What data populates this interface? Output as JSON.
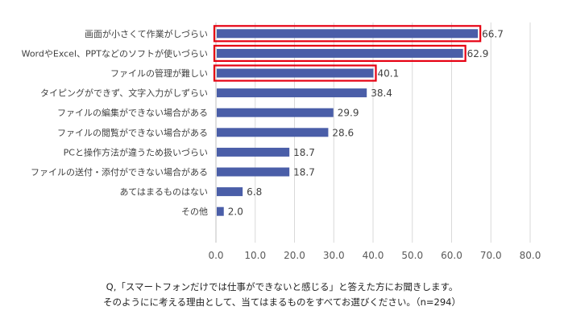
{
  "chart_data": {
    "type": "bar",
    "orientation": "horizontal",
    "categories": [
      "画面が小さくて作業がしづらい",
      "WordやExcel、PPTなどのソフトが使いづらい",
      "ファイルの管理が難しい",
      "タイピングができず、文字入力がしずらい",
      "ファイルの編集ができない場合がある",
      "ファイルの閲覧ができない場合がある",
      "PCと操作方法が違うため扱いづらい",
      "ファイルの送付・添付ができない場合がある",
      "あてはまるものはない",
      "その他"
    ],
    "values": [
      66.7,
      62.9,
      40.1,
      38.4,
      29.9,
      28.6,
      18.7,
      18.7,
      6.8,
      2.0
    ],
    "value_labels": [
      "66.7",
      "62.9",
      "40.1",
      "38.4",
      "29.9",
      "28.6",
      "18.7",
      "18.7",
      "6.8",
      "2.0"
    ],
    "highlighted": [
      0,
      1,
      2
    ],
    "xlim": [
      0,
      80
    ],
    "x_ticks": [
      "0.0",
      "10.0",
      "20.0",
      "30.0",
      "40.0",
      "50.0",
      "60.0",
      "70.0",
      "80.0"
    ],
    "grid": true,
    "colors": {
      "bar": "#4a5ea8",
      "highlight": "#e60012",
      "grid": "#d9d9d9"
    }
  },
  "caption": {
    "line1": "Q,「スマートフォンだけでは仕事ができないと感じる」と答えた方にお聞きします。",
    "line2": "そのようにに考える理由として、当てはまるものをすべてお選びください。（n=294）"
  }
}
